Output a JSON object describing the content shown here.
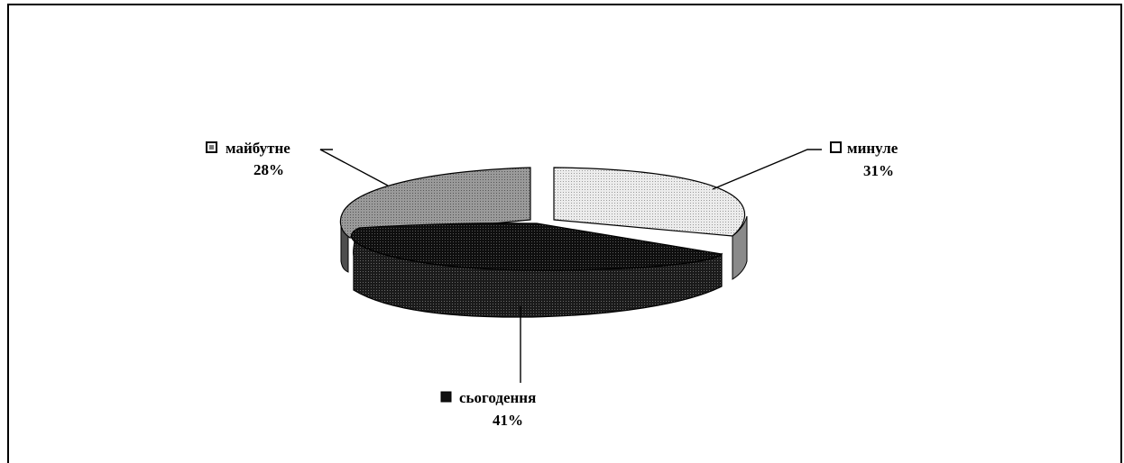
{
  "chart_data": {
    "type": "pie",
    "title": "",
    "style": "3d-exploded",
    "series": [
      {
        "name": "",
        "slices": [
          {
            "label": "минуле",
            "value": 31,
            "value_label": "31%",
            "color": "#e4e4e4",
            "side_color": "#9a9a9a"
          },
          {
            "label": "сьогодення",
            "value": 41,
            "value_label": "41%",
            "color": "#141414",
            "side_color": "#111111"
          },
          {
            "label": "майбутне",
            "value": 28,
            "value_label": "28%",
            "color": "#8c8c8c",
            "side_color": "#4e4e4e"
          }
        ]
      }
    ],
    "legend": "none",
    "data_labels": "outside-with-leader-lines"
  }
}
